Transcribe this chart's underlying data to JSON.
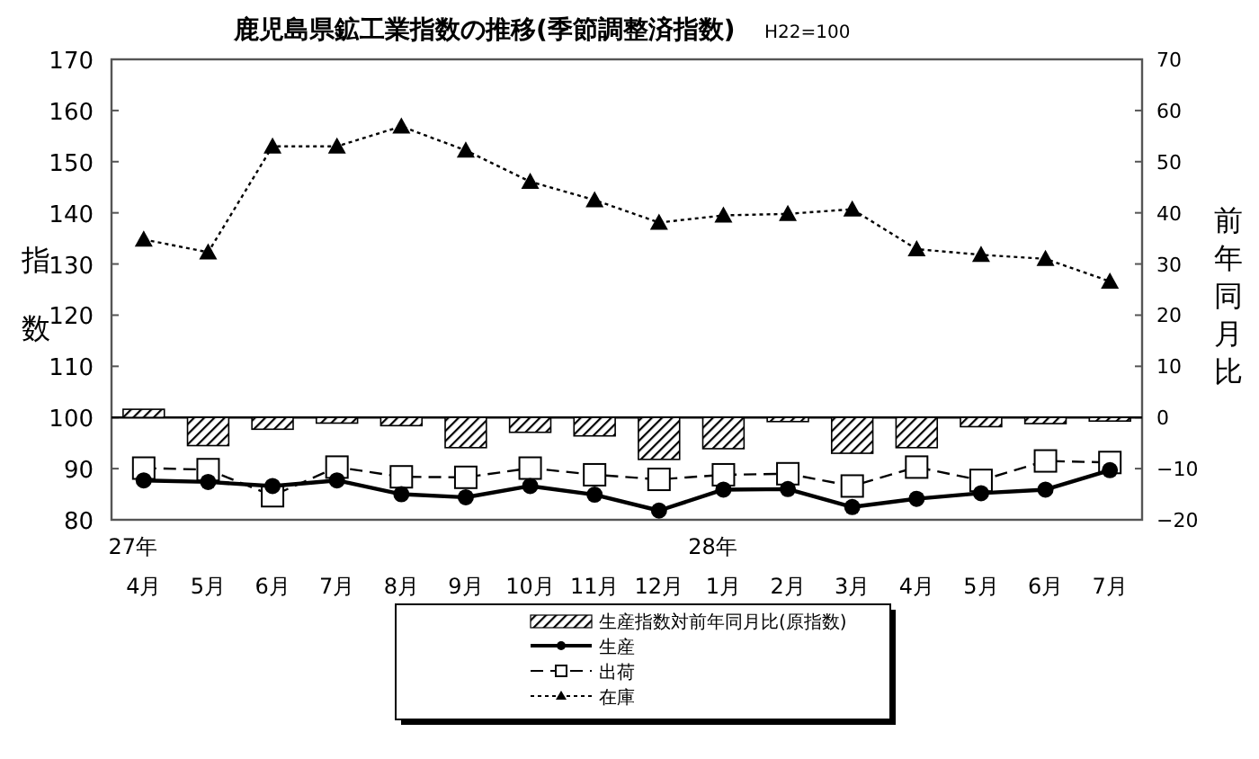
{
  "chart_data": {
    "type": "line",
    "title": "鹿児島県鉱工業指数の推移(季節調整済指数)",
    "subtitle": "H22=100",
    "ylabel": "指数",
    "y2label": "前年同月比",
    "categories": [
      "27年\n4月",
      "5月",
      "6月",
      "7月",
      "8月",
      "9月",
      "10月",
      "11月",
      "12月",
      "28年\n1月",
      "2月",
      "3月",
      "4月",
      "5月",
      "6月",
      "7月"
    ],
    "ylim": [
      80,
      170
    ],
    "yticks": [
      80,
      90,
      100,
      110,
      120,
      130,
      140,
      150,
      160,
      170
    ],
    "y2lim": [
      -20,
      70
    ],
    "y2ticks": [
      -20,
      -10,
      0,
      10,
      20,
      30,
      40,
      50,
      60,
      70
    ],
    "legend": "bottom",
    "ref_lines": [
      {
        "axis": "y2",
        "value": 0,
        "color": "#000000"
      }
    ],
    "series": [
      {
        "name": "生産指数対前年同月比(原指数)",
        "type": "bar",
        "axis": "y2",
        "color": "#000000",
        "values": [
          1.6,
          -5.5,
          -2.3,
          -1.1,
          -1.6,
          -5.9,
          -2.9,
          -3.6,
          -8.2,
          -6.1,
          -0.8,
          -7.0,
          -5.9,
          -1.8,
          -1.2,
          -0.7
        ]
      },
      {
        "name": "生産",
        "color": "#000000",
        "marker": "circle",
        "line_style": "solid",
        "values": [
          87.7,
          87.4,
          86.6,
          87.7,
          85.0,
          84.4,
          86.6,
          84.9,
          81.8,
          85.9,
          86.0,
          82.5,
          84.1,
          85.2,
          85.9,
          89.7
        ]
      },
      {
        "name": "出荷",
        "color": "#000000",
        "marker": "square",
        "line_style": "dashed",
        "values": [
          90.1,
          89.8,
          84.7,
          90.3,
          88.4,
          88.3,
          90.1,
          88.8,
          87.9,
          88.8,
          89.0,
          86.6,
          90.3,
          87.7,
          91.5,
          91.2
        ]
      },
      {
        "name": "在庫",
        "color": "#000000",
        "marker": "triangle",
        "line_style": "dotted",
        "values": [
          134.8,
          132.3,
          153.0,
          153.0,
          156.9,
          152.2,
          146.1,
          142.5,
          138.1,
          139.5,
          139.8,
          140.7,
          132.9,
          131.8,
          131.0,
          126.6
        ]
      }
    ]
  }
}
